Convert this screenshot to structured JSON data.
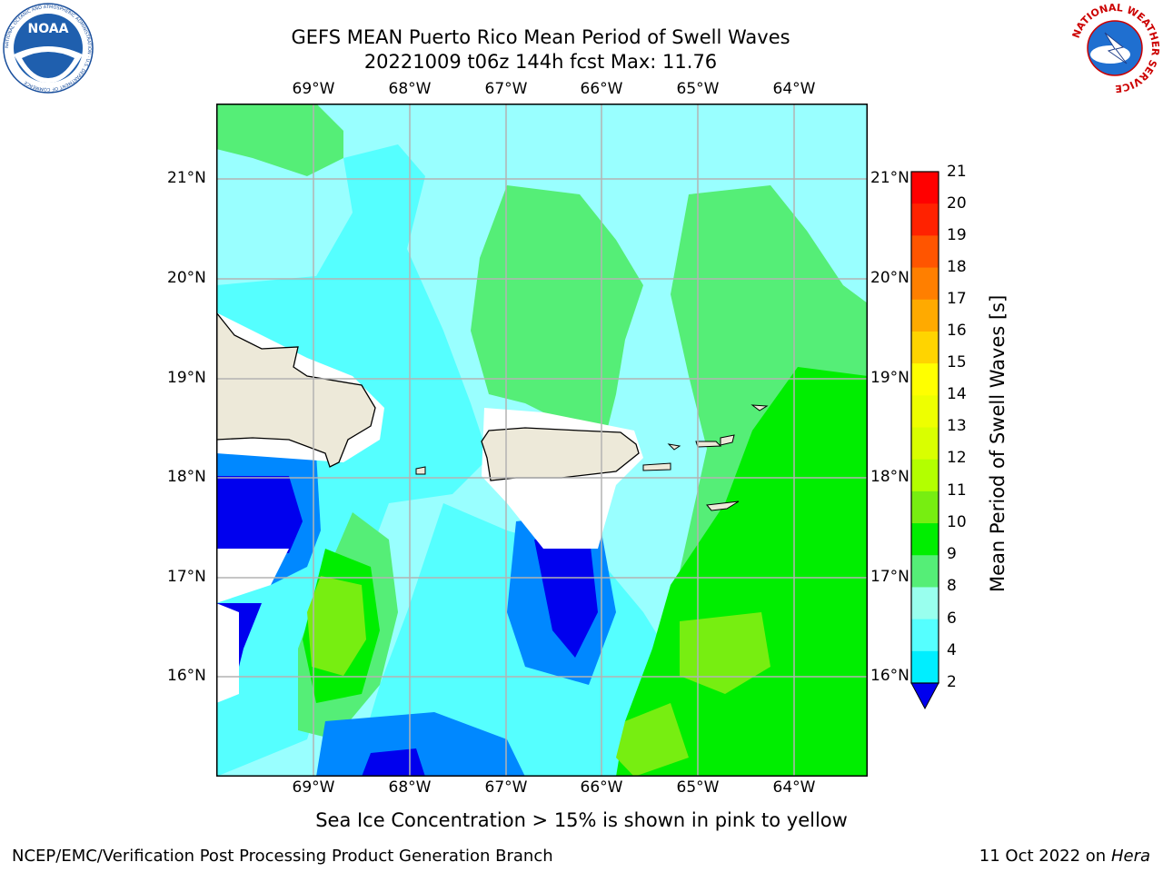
{
  "header": {
    "title_line1": "GEFS MEAN Puerto Rico Mean Period of Swell Waves",
    "title_line2": "20221009 t06z 144h fcst   Max: 11.76"
  },
  "logos": {
    "left_name": "NOAA",
    "left_ring_text": "NATIONAL OCEANIC AND ATMOSPHERIC ADMINISTRATION · U.S. DEPARTMENT OF COMMERCE",
    "right_ring_text": "NATIONAL WEATHER SERVICE"
  },
  "map": {
    "lon_labels": [
      "69°W",
      "68°W",
      "67°W",
      "66°W",
      "65°W",
      "64°W"
    ],
    "lat_labels": [
      "21°N",
      "20°N",
      "19°N",
      "18°N",
      "17°N",
      "16°N"
    ],
    "lon_range": [
      -70.0,
      -63.25
    ],
    "lat_range": [
      15.0,
      21.75
    ],
    "grid": true,
    "colors": {
      "land": "#ede9d9",
      "masked": "#ffffff",
      "gridline": "#b3b3b3"
    }
  },
  "colorbar": {
    "title": "Mean Period of Swell Waves [s]",
    "ticks": [
      "21",
      "20",
      "19",
      "18",
      "17",
      "16",
      "15",
      "14",
      "13",
      "12",
      "11",
      "10",
      "9",
      "8",
      "6",
      "4",
      "2"
    ],
    "extend": "min",
    "colors": [
      "#ff0000",
      "#ff2200",
      "#ff5500",
      "#ff7f00",
      "#ffaa00",
      "#ffd400",
      "#ffff00",
      "#eeff00",
      "#d9ff00",
      "#b3ff00",
      "#77ee11",
      "#00ee00",
      "#55ee77",
      "#99ffee",
      "#55ffff",
      "#00eeff",
      "#0088ff",
      "#0000ee"
    ]
  },
  "footer": {
    "note": "Sea Ice Concentration > 15% is shown in pink to yellow",
    "left": "NCEP/EMC/Verification Post Processing Product Generation Branch",
    "right_date": "11 Oct 2022 on ",
    "right_machine": "Hera"
  }
}
